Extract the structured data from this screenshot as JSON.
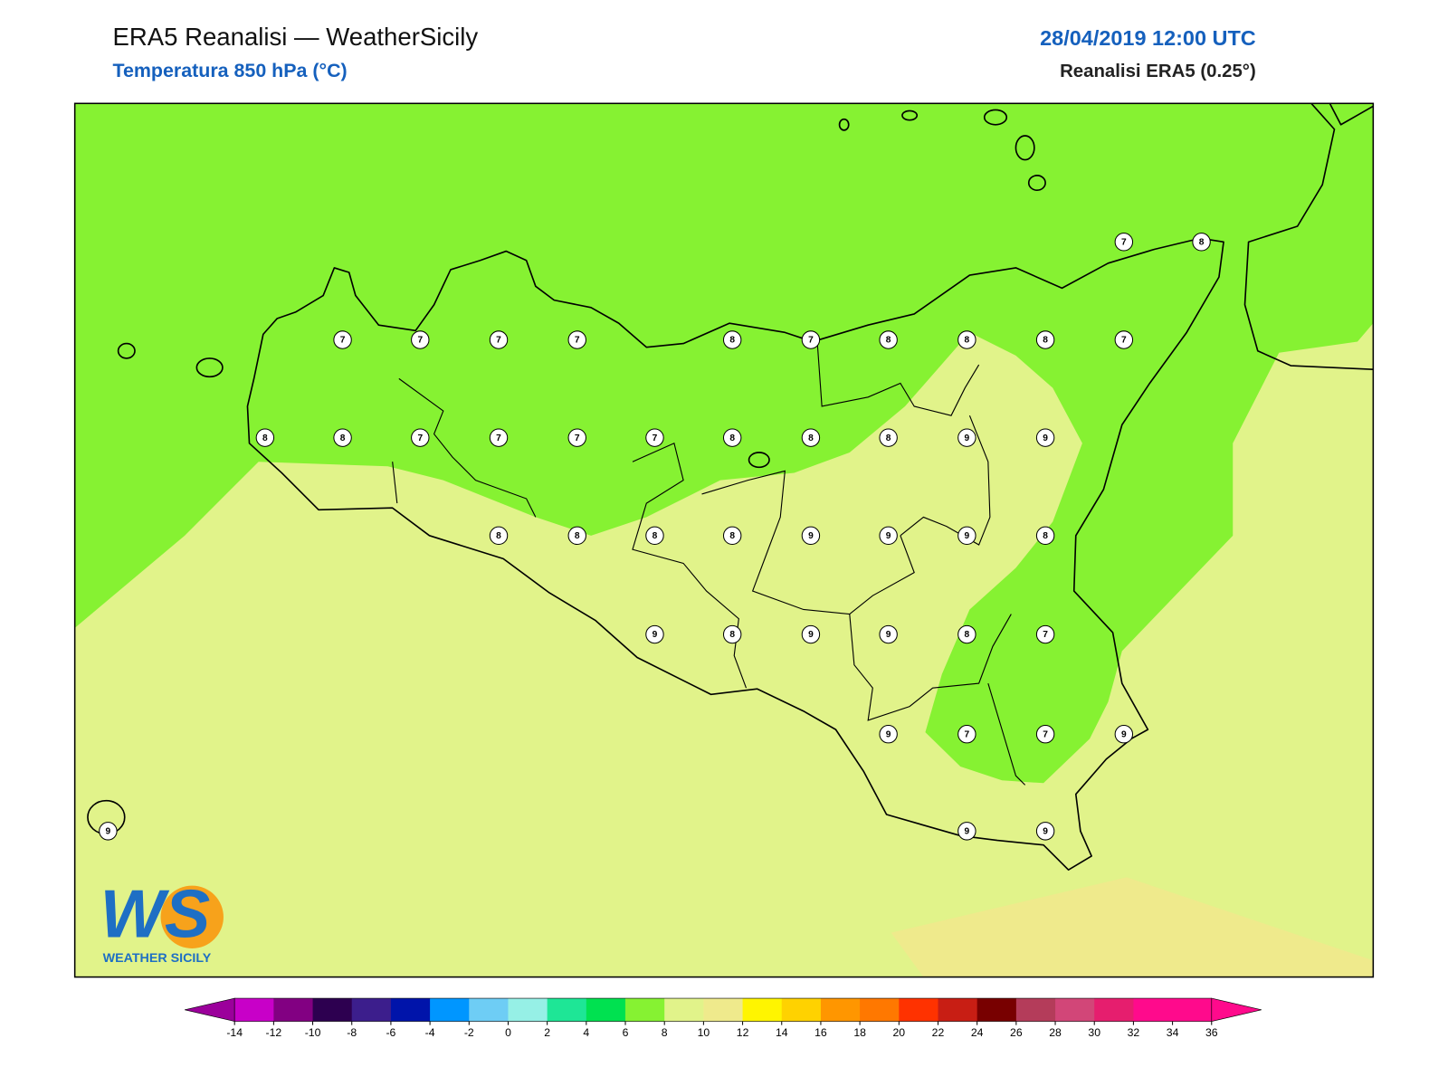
{
  "header": {
    "title": "ERA5 Reanalisi — WeatherSicily",
    "subtitle": "Temperatura 850 hPa (°C)",
    "datetime": "28/04/2019 12:00 UTC",
    "source": "Reanalisi ERA5 (0.25°)"
  },
  "map": {
    "fill_colors": [
      "#86f232",
      "#e1f38a",
      "#efea8c"
    ],
    "stations": [
      7,
      8,
      7,
      7,
      7,
      7,
      8,
      7,
      8,
      8,
      8,
      7,
      8,
      8,
      7,
      7,
      7,
      7,
      8,
      8,
      8,
      9,
      9,
      8,
      8,
      8,
      8,
      9,
      9,
      9,
      8,
      9,
      8,
      9,
      9,
      8,
      7,
      9,
      7,
      7,
      9,
      9,
      9,
      9
    ]
  },
  "colorbar": {
    "under": "#9b009b",
    "over": "#ff0a8c",
    "colors": [
      "#c800c8",
      "#820082",
      "#2d0050",
      "#3c1e8c",
      "#0014aa",
      "#0096ff",
      "#6ecdf5",
      "#96f0e6",
      "#1ee696",
      "#00e150",
      "#86f232",
      "#e1f38a",
      "#efea8c",
      "#fff500",
      "#ffd200",
      "#ff9600",
      "#ff7800",
      "#ff3200",
      "#c81e14",
      "#780000",
      "#b43c5a",
      "#d24678",
      "#e61e6e",
      "#ff0a8c",
      "#ff0a8c"
    ],
    "ticks": [
      -14,
      -12,
      -10,
      -8,
      -6,
      -4,
      -2,
      0,
      2,
      4,
      6,
      8,
      10,
      12,
      14,
      16,
      18,
      20,
      22,
      24,
      26,
      28,
      30,
      32,
      34,
      36
    ]
  },
  "logo": {
    "mark": "WS",
    "name": "WEATHER SICILY"
  }
}
